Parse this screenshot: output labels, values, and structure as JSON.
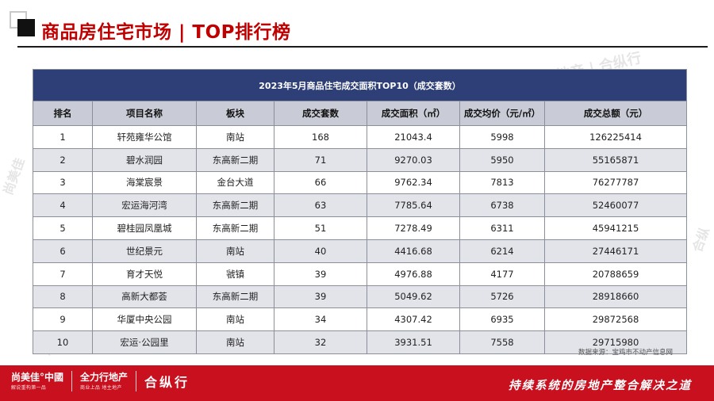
{
  "header": {
    "title": "商品房住宅市场 | TOP排行榜"
  },
  "table": {
    "caption": "2023年5月商品住宅成交面积TOP10（成交套数）",
    "columns": [
      "排名",
      "项目名称",
      "板块",
      "成交套数",
      "成交面积（㎡）",
      "成交均价（元/㎡）",
      "成交总额（元）"
    ],
    "rows": [
      [
        "1",
        "轩苑雍华公馆",
        "南站",
        "168",
        "21043.4",
        "5998",
        "126225414"
      ],
      [
        "2",
        "碧水润园",
        "东高新二期",
        "71",
        "9270.03",
        "5950",
        "55165871"
      ],
      [
        "3",
        "海棠宸景",
        "金台大道",
        "66",
        "9762.34",
        "7813",
        "76277787"
      ],
      [
        "4",
        "宏运海河湾",
        "东高新二期",
        "63",
        "7785.64",
        "6738",
        "52460077"
      ],
      [
        "5",
        "碧桂园凤凰城",
        "东高新二期",
        "51",
        "7278.49",
        "6311",
        "45941215"
      ],
      [
        "6",
        "世纪景元",
        "南站",
        "40",
        "4416.68",
        "6214",
        "27446171"
      ],
      [
        "7",
        "育才天悦",
        "虢镇",
        "39",
        "4976.88",
        "4177",
        "20788659"
      ],
      [
        "8",
        "高新大都荟",
        "东高新二期",
        "39",
        "5049.62",
        "5726",
        "28918660"
      ],
      [
        "9",
        "华厦中央公园",
        "南站",
        "34",
        "4307.42",
        "6935",
        "29872568"
      ],
      [
        "10",
        "宏运·公园里",
        "南站",
        "32",
        "3931.51",
        "7558",
        "29715980"
      ]
    ]
  },
  "source_note": "数据来源：宝鸡市不动产信息网",
  "footer": {
    "brand_1": "尚美佳°中國",
    "brand_1_sub": "解说重构第一品",
    "brand_2": "全力行地产",
    "brand_2_sub": "商业上品 地主地产",
    "brand_3": "合纵行",
    "slogan": "持续系统的房地产整合解决之道"
  },
  "watermarks": {
    "top_right": "地产 | 合纵行",
    "left": "尚美佳",
    "right": "合纵",
    "bottom_left": "尚美佳"
  },
  "colors": {
    "title_red": "#c00000",
    "caption_navy": "#2e3f77",
    "header_gray": "#c9ccd6",
    "stripe": "#e3e4ea",
    "footer_red": "#c8101f"
  }
}
